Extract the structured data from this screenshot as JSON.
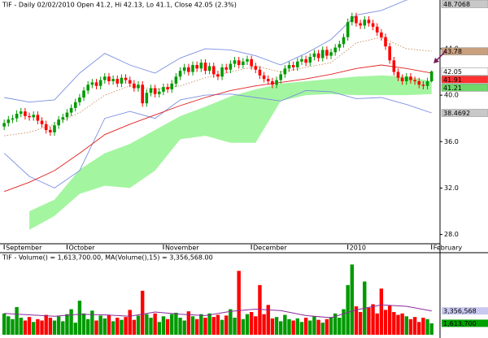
{
  "chart_data": [
    {
      "type": "candlestick",
      "title": "TIF - Daily 02/02/2010 Open 41.2, Hi 42.13, Lo 41.1, Close 42.05 (2.3%)",
      "open": [
        37.3,
        37.6,
        37.9,
        38.0,
        38.4,
        38.6,
        38.2,
        38.1,
        38.3,
        37.8,
        37.5,
        37.0,
        36.8,
        37.4,
        37.9,
        38.1,
        38.5,
        38.9,
        39.4,
        39.8,
        40.4,
        40.9,
        41.1,
        40.8,
        41.3,
        41.6,
        41.2,
        41.4,
        41.0,
        41.5,
        41.3,
        41.0,
        40.6,
        40.9,
        39.3,
        40.2,
        40.6,
        40.1,
        40.3,
        40.7,
        40.5,
        41.0,
        41.6,
        42.1,
        42.4,
        42.0,
        42.6,
        42.3,
        42.8,
        42.1,
        42.5,
        41.8,
        41.6,
        42.4,
        42.2,
        42.7,
        43.0,
        42.6,
        42.9,
        43.1,
        42.5,
        42.2,
        41.7,
        41.4,
        41.2,
        40.9,
        41.3,
        41.8,
        42.3,
        42.6,
        42.4,
        42.9,
        43.1,
        42.8,
        43.3,
        43.6,
        43.2,
        43.9,
        43.4,
        43.7,
        44.1,
        44.4,
        45.0,
        46.3,
        46.8,
        46.2,
        46.0,
        46.5,
        46.2,
        45.9,
        45.4,
        45.0,
        44.2,
        43.0,
        42.0,
        41.5,
        41.2,
        41.6,
        41.3,
        41.2,
        40.9,
        40.8,
        41.2
      ],
      "high": [
        37.9,
        38.2,
        38.3,
        38.7,
        38.9,
        38.9,
        38.5,
        38.6,
        38.6,
        38.1,
        37.8,
        37.3,
        37.7,
        38.2,
        38.4,
        38.8,
        39.2,
        39.7,
        40.1,
        40.7,
        41.2,
        41.4,
        41.4,
        41.6,
        41.9,
        41.9,
        41.7,
        41.7,
        41.8,
        41.8,
        41.6,
        41.3,
        41.2,
        41.2,
        40.5,
        40.9,
        40.9,
        40.6,
        41.0,
        41.0,
        41.3,
        41.9,
        42.4,
        42.7,
        42.7,
        42.9,
        42.9,
        43.1,
        43.1,
        42.8,
        42.8,
        42.1,
        42.7,
        42.7,
        43.0,
        43.3,
        43.3,
        43.2,
        43.4,
        43.4,
        42.8,
        42.5,
        42.0,
        41.7,
        41.5,
        41.6,
        42.1,
        42.6,
        42.9,
        42.9,
        43.2,
        43.4,
        43.4,
        43.6,
        43.9,
        43.9,
        44.2,
        44.2,
        44.0,
        44.4,
        44.7,
        45.3,
        46.6,
        47.1,
        47.1,
        46.5,
        46.8,
        46.8,
        46.5,
        46.2,
        45.7,
        45.3,
        44.5,
        43.3,
        42.3,
        41.8,
        41.9,
        41.9,
        41.6,
        41.5,
        41.2,
        41.5,
        42.13
      ],
      "low": [
        37.0,
        37.3,
        37.6,
        37.7,
        38.1,
        37.9,
        37.8,
        37.8,
        37.5,
        37.2,
        36.7,
        36.5,
        36.5,
        37.1,
        37.6,
        37.8,
        38.2,
        38.6,
        39.1,
        39.5,
        40.1,
        40.6,
        40.5,
        40.5,
        41.0,
        40.9,
        40.9,
        40.7,
        40.7,
        41.0,
        40.7,
        40.3,
        40.3,
        39.0,
        39.0,
        39.9,
        39.8,
        39.8,
        40.0,
        40.2,
        40.2,
        40.7,
        41.3,
        41.8,
        41.7,
        41.7,
        42.0,
        42.0,
        41.8,
        41.8,
        41.5,
        41.3,
        41.3,
        41.9,
        41.9,
        42.4,
        42.3,
        42.3,
        42.6,
        42.2,
        41.9,
        41.4,
        41.1,
        40.9,
        40.6,
        40.6,
        41.0,
        41.5,
        42.0,
        42.1,
        42.1,
        42.6,
        42.5,
        42.5,
        43.0,
        42.9,
        42.9,
        43.1,
        43.1,
        43.4,
        43.8,
        44.1,
        44.7,
        46.0,
        45.9,
        45.7,
        45.7,
        45.9,
        45.6,
        45.1,
        44.7,
        43.9,
        42.7,
        41.7,
        41.2,
        40.9,
        40.9,
        41.0,
        40.9,
        40.6,
        40.5,
        40.5,
        41.1
      ],
      "close": [
        37.6,
        37.9,
        38.0,
        38.4,
        38.6,
        38.2,
        38.1,
        38.3,
        37.8,
        37.5,
        37.0,
        36.8,
        37.4,
        37.9,
        38.1,
        38.5,
        38.9,
        39.4,
        39.8,
        40.4,
        40.9,
        41.1,
        40.8,
        41.3,
        41.6,
        41.2,
        41.4,
        41.0,
        41.5,
        41.3,
        41.0,
        40.6,
        40.9,
        39.3,
        40.2,
        40.6,
        40.1,
        40.3,
        40.7,
        40.5,
        41.0,
        41.6,
        42.1,
        42.4,
        42.0,
        42.6,
        42.3,
        42.8,
        42.1,
        42.5,
        41.8,
        41.6,
        42.4,
        42.2,
        42.7,
        43.0,
        42.6,
        42.9,
        43.1,
        42.5,
        42.2,
        41.7,
        41.4,
        41.2,
        40.9,
        41.3,
        41.8,
        42.3,
        42.6,
        42.4,
        42.9,
        43.1,
        42.8,
        43.3,
        43.6,
        43.2,
        43.9,
        43.4,
        43.7,
        44.1,
        44.4,
        45.0,
        46.3,
        46.8,
        46.2,
        46.0,
        46.5,
        46.2,
        45.9,
        45.4,
        45.0,
        44.2,
        43.0,
        42.0,
        41.5,
        41.2,
        41.6,
        41.3,
        41.2,
        40.9,
        40.8,
        41.2,
        42.05
      ],
      "up_color": "#009a00",
      "down_color": "#ff0000",
      "xlim": [
        -1,
        104
      ],
      "xticks": [
        {
          "value": 0,
          "label": "September"
        },
        {
          "value": 15,
          "label": "October"
        },
        {
          "value": 38,
          "label": "November"
        },
        {
          "value": 59,
          "label": "December"
        },
        {
          "value": 82,
          "label": "2010"
        },
        {
          "value": 102,
          "label": "February"
        }
      ],
      "ylim": [
        27.2,
        48.2
      ],
      "yticks": [
        {
          "value": 28,
          "label": "28.0"
        },
        {
          "value": 32,
          "label": "32.0"
        },
        {
          "value": 36,
          "label": "36.0"
        },
        {
          "value": 40,
          "label": "40.0"
        },
        {
          "value": 44,
          "label": "44.0"
        }
      ],
      "close_badge_color": "#ffffff",
      "cloud": {
        "color": "#a4f5a0",
        "badge_color": "#6fd66a",
        "x": [
          6,
          12,
          18,
          24,
          30,
          36,
          42,
          48,
          54,
          60,
          66,
          72,
          78,
          84,
          90,
          96,
          102
        ],
        "upper": [
          30.0,
          31.0,
          33.6,
          35.0,
          35.8,
          37.0,
          38.2,
          39.0,
          39.9,
          40.5,
          41.0,
          41.2,
          41.4,
          41.6,
          41.7,
          41.6,
          41.21
        ],
        "lower": [
          28.4,
          29.6,
          31.5,
          32.2,
          32.0,
          33.5,
          36.2,
          36.5,
          35.9,
          35.9,
          39.5,
          40.0,
          40.1,
          40.0,
          40.0,
          40.0,
          40.1
        ]
      },
      "lines": [
        {
          "color": "#7b8fe0",
          "badge_color": "#c8c8c8",
          "style": "solid",
          "x": [
            0,
            6,
            12,
            18,
            24,
            30,
            36,
            42,
            48,
            54,
            60,
            66,
            72,
            78,
            84,
            90,
            96,
            102
          ],
          "values": [
            39.8,
            39.4,
            39.6,
            41.9,
            43.6,
            42.6,
            41.9,
            43.2,
            44.0,
            43.9,
            43.4,
            42.6,
            43.6,
            44.8,
            46.9,
            47.3,
            48.2,
            48.7068
          ]
        },
        {
          "color": "#7b8fe0",
          "badge_color": "#c8c8c8",
          "style": "solid",
          "x": [
            0,
            6,
            12,
            18,
            24,
            30,
            36,
            42,
            48,
            54,
            60,
            66,
            72,
            78,
            84,
            90,
            96,
            102
          ],
          "values": [
            35.0,
            33.0,
            32.0,
            33.5,
            38.0,
            38.6,
            38.0,
            39.6,
            40.0,
            40.1,
            39.8,
            39.5,
            40.4,
            40.3,
            39.7,
            39.8,
            39.2,
            38.4692
          ]
        },
        {
          "color": "#c98a5e",
          "badge_color": "#c9a07e",
          "style": "dotted",
          "x": [
            0,
            6,
            12,
            18,
            24,
            30,
            36,
            42,
            48,
            54,
            60,
            66,
            72,
            78,
            84,
            90,
            96,
            102
          ],
          "values": [
            36.5,
            36.8,
            37.5,
            38.5,
            40.0,
            40.8,
            40.5,
            40.8,
            41.5,
            42.0,
            42.5,
            42.0,
            42.4,
            42.8,
            44.5,
            45.0,
            44.0,
            43.78
          ]
        },
        {
          "color": "#e02020",
          "badge_color": "#ff3030",
          "style": "solid",
          "x": [
            0,
            6,
            12,
            18,
            24,
            30,
            36,
            42,
            48,
            54,
            60,
            66,
            72,
            78,
            84,
            90,
            96,
            102
          ],
          "values": [
            31.7,
            32.5,
            33.5,
            35.0,
            36.6,
            37.5,
            38.3,
            39.1,
            39.8,
            40.4,
            40.8,
            41.1,
            41.4,
            41.8,
            42.3,
            42.6,
            42.3,
            41.91
          ]
        }
      ]
    },
    {
      "type": "bar",
      "title": "TIF - Volume() = 1,613,700.00, MA(Volume(),15) = 3,356,568.00",
      "values": [
        3000000,
        2600000,
        2200000,
        3900000,
        2400000,
        2000000,
        2500000,
        1800000,
        2200000,
        2000000,
        2800000,
        2400000,
        2000000,
        2600000,
        1900000,
        2900000,
        3600000,
        1700000,
        4800000,
        3000000,
        2200000,
        3400000,
        2000000,
        2700000,
        2300000,
        2800000,
        1900000,
        2400000,
        2100000,
        2500000,
        3500000,
        2100000,
        2700000,
        6200000,
        2900000,
        2400000,
        3000000,
        1800000,
        2600000,
        2200000,
        2900000,
        3100000,
        2400000,
        2000000,
        3300000,
        2600000,
        2200000,
        2900000,
        2400000,
        3000000,
        2500000,
        2800000,
        2100000,
        2700000,
        3600000,
        2400000,
        9000000,
        2200000,
        2900000,
        3200000,
        2600000,
        7000000,
        2900000,
        4200000,
        2300000,
        2500000,
        1900000,
        2800000,
        2200000,
        2000000,
        2300000,
        1800000,
        2400000,
        2000000,
        2600000,
        2100000,
        1700000,
        2200000,
        2500000,
        3000000,
        2400000,
        3600000,
        7000000,
        9900000,
        4000000,
        3200000,
        7500000,
        3800000,
        4300000,
        3000000,
        6500000,
        3500000,
        4100000,
        3200000,
        2800000,
        3000000,
        2600000,
        2200000,
        2500000,
        1800000,
        2400000,
        2200000,
        1613700
      ],
      "last_value_label": "1,613,700",
      "ylim": [
        0,
        10300000
      ],
      "badge_color": "#00a000",
      "ma": {
        "color": "#8a2a9a",
        "badge_color": "#c8c8f0",
        "x": [
          0,
          6,
          12,
          18,
          24,
          30,
          36,
          42,
          48,
          54,
          60,
          66,
          72,
          78,
          84,
          90,
          96,
          102
        ],
        "values": [
          3000000,
          2800000,
          2600000,
          2900000,
          2800000,
          2600000,
          3200000,
          2900000,
          2700000,
          3300000,
          3600000,
          3400000,
          2700000,
          2400000,
          3500000,
          4200000,
          4000000,
          3356568
        ],
        "last_value_label": "3,356,568"
      }
    }
  ]
}
